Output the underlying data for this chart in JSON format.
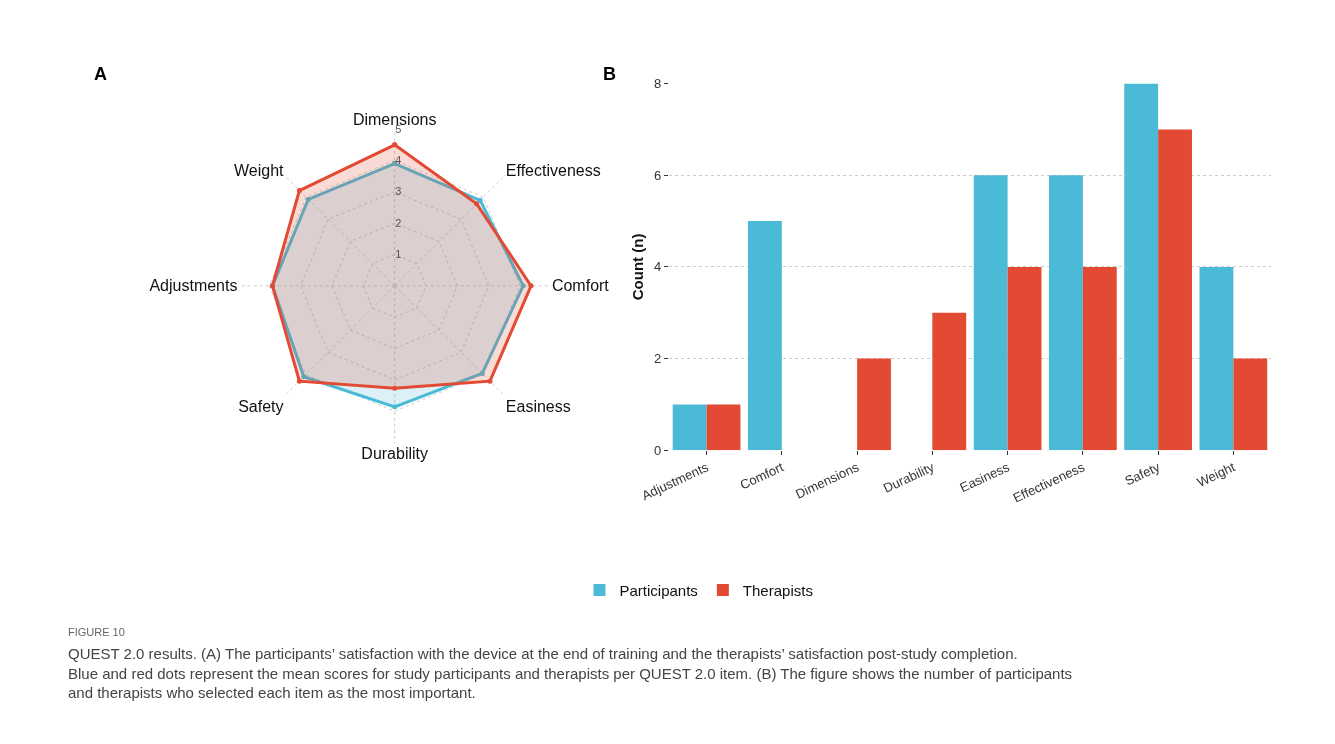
{
  "chart_data": [
    {
      "type": "radar",
      "categories": [
        "Dimensions",
        "Effectiveness",
        "Comfort",
        "Easiness",
        "Durability",
        "Safety",
        "Adjustments",
        "Weight"
      ],
      "series": [
        {
          "color": "#4bbad6",
          "values": [
            3.9,
            3.86,
            4.1,
            3.95,
            3.86,
            4.1,
            3.9,
            3.9
          ]
        },
        {
          "color": "#e34a33",
          "values": [
            4.5,
            3.7,
            4.35,
            4.3,
            3.27,
            4.3,
            3.9,
            4.3
          ]
        }
      ],
      "ylim": [
        0,
        5
      ],
      "yticks": [
        1,
        2,
        3,
        4,
        5
      ],
      "marker": "circle",
      "grid": true,
      "annotations": [
        "A"
      ]
    },
    {
      "type": "bar",
      "ylabel": "Count (n)",
      "categories": [
        "Adjustments",
        "Comfort",
        "Dimensions",
        "Durability",
        "Easiness",
        "Effectiveness",
        "Safety",
        "Weight"
      ],
      "series": [
        {
          "name": "Participants",
          "color": "#4bbad6",
          "values": [
            1,
            5,
            0,
            0,
            6,
            6,
            8,
            4
          ]
        },
        {
          "name": "Therapists",
          "color": "#e34a33",
          "values": [
            1,
            0,
            2,
            3,
            4,
            4,
            7,
            2
          ]
        }
      ],
      "ylim": [
        0,
        8
      ],
      "yticks": [
        0,
        2,
        4,
        6,
        8
      ],
      "grid": "y",
      "legend": "bottom",
      "annotations": [
        "B",
        "FIGURE 10",
        "QUEST 2.0 results. (A) The participants’ satisfaction with the device at the end of training and the therapists’ satisfaction post-study completion. Blue and red dots represent the mean scores for study participants and therapists per QUEST 2.0 item. (B) The figure shows the number of participants and therapists who selected each item as the most important."
      ]
    }
  ]
}
